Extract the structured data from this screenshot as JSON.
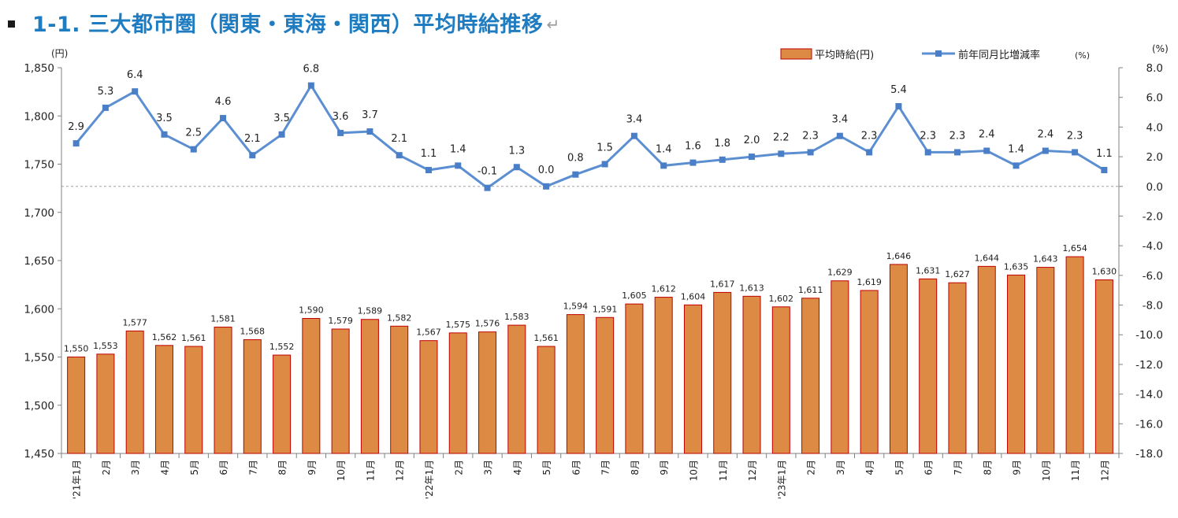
{
  "title": "1-1. 三大都市圏（関東・東海・関西）平均時給推移",
  "title_mark": "↵",
  "colors": {
    "title": "#1f7cc1",
    "bar_fill": "#dd8a45",
    "bar_stroke": "#c00000",
    "line": "#5b8fd1",
    "marker": "#4a7fc7",
    "zero_line": "#a0a0a0"
  },
  "chart_data": {
    "type": "bar",
    "categories": [
      "'21年1月",
      "2月",
      "3月",
      "4月",
      "5月",
      "6月",
      "7月",
      "8月",
      "9月",
      "10月",
      "11月",
      "12月",
      "'22年1月",
      "2月",
      "3月",
      "4月",
      "5月",
      "6月",
      "7月",
      "8月",
      "9月",
      "10月",
      "11月",
      "12月",
      "'23年1月",
      "2月",
      "3月",
      "4月",
      "5月",
      "6月",
      "7月",
      "8月",
      "9月",
      "10月",
      "11月",
      "12月"
    ],
    "series": [
      {
        "name": "平均時給(円)",
        "type": "bar",
        "axis": "left",
        "values": [
          1550,
          1553,
          1577,
          1562,
          1561,
          1581,
          1568,
          1552,
          1590,
          1579,
          1589,
          1582,
          1567,
          1575,
          1576,
          1583,
          1561,
          1594,
          1591,
          1605,
          1612,
          1604,
          1617,
          1613,
          1602,
          1611,
          1629,
          1619,
          1646,
          1631,
          1627,
          1644,
          1635,
          1643,
          1654,
          1630
        ],
        "labels": [
          "1,550",
          "1,553",
          "1,577",
          "1,562",
          "1,561",
          "1,581",
          "1,568",
          "1,552",
          "1,590",
          "1,579",
          "1,589",
          "1,582",
          "1,567",
          "1,575",
          "1,576",
          "1,583",
          "1,561",
          "1,594",
          "1,591",
          "1,605",
          "1,612",
          "1,604",
          "1,617",
          "1,613",
          "1,602",
          "1,611",
          "1,629",
          "1,619",
          "1,646",
          "1,631",
          "1,627",
          "1,644",
          "1,635",
          "1,643",
          "1,654",
          "1,630"
        ]
      },
      {
        "name": "前年同月比増減率",
        "type": "line",
        "axis": "right",
        "values": [
          2.9,
          5.3,
          6.4,
          3.5,
          2.5,
          4.6,
          2.1,
          3.5,
          6.8,
          3.6,
          3.7,
          2.1,
          1.1,
          1.4,
          -0.1,
          1.3,
          0.0,
          0.8,
          1.5,
          3.4,
          1.4,
          1.6,
          1.8,
          2.0,
          2.2,
          2.3,
          3.4,
          2.3,
          5.4,
          2.3,
          2.3,
          2.4,
          1.4,
          2.4,
          2.3,
          1.1
        ],
        "labels": [
          "2.9",
          "5.3",
          "6.4",
          "3.5",
          "2.5",
          "4.6",
          "2.1",
          "3.5",
          "6.8",
          "3.6",
          "3.7",
          "2.1",
          "1.1",
          "1.4",
          "-0.1",
          "1.3",
          "0.0",
          "0.8",
          "1.5",
          "3.4",
          "1.4",
          "1.6",
          "1.8",
          "2.0",
          "2.2",
          "2.3",
          "3.4",
          "2.3",
          "5.4",
          "2.3",
          "2.3",
          "2.4",
          "1.4",
          "2.4",
          "2.3",
          "1.1"
        ]
      }
    ],
    "legend": {
      "bar_label": "平均時給(円)",
      "line_label": "前年同月比増減率",
      "line_unit": "(%)",
      "placement": "top-right"
    },
    "y_left": {
      "unit": "(円)",
      "ylim": [
        1450,
        1850
      ],
      "ticks": [
        "1,850",
        "1,800",
        "1,750",
        "1,700",
        "1,650",
        "1,600",
        "1,550",
        "1,500",
        "1,450"
      ]
    },
    "y_right": {
      "unit": "(%)",
      "ylim": [
        -18.0,
        8.0
      ],
      "ticks": [
        "8.0",
        "6.0",
        "4.0",
        "2.0",
        "0.0",
        "-2.0",
        "-4.0",
        "-6.0",
        "-8.0",
        "-10.0",
        "-12.0",
        "-14.0",
        "-16.0",
        "-18.0"
      ]
    },
    "grid": false,
    "zero_reference_line": true
  }
}
